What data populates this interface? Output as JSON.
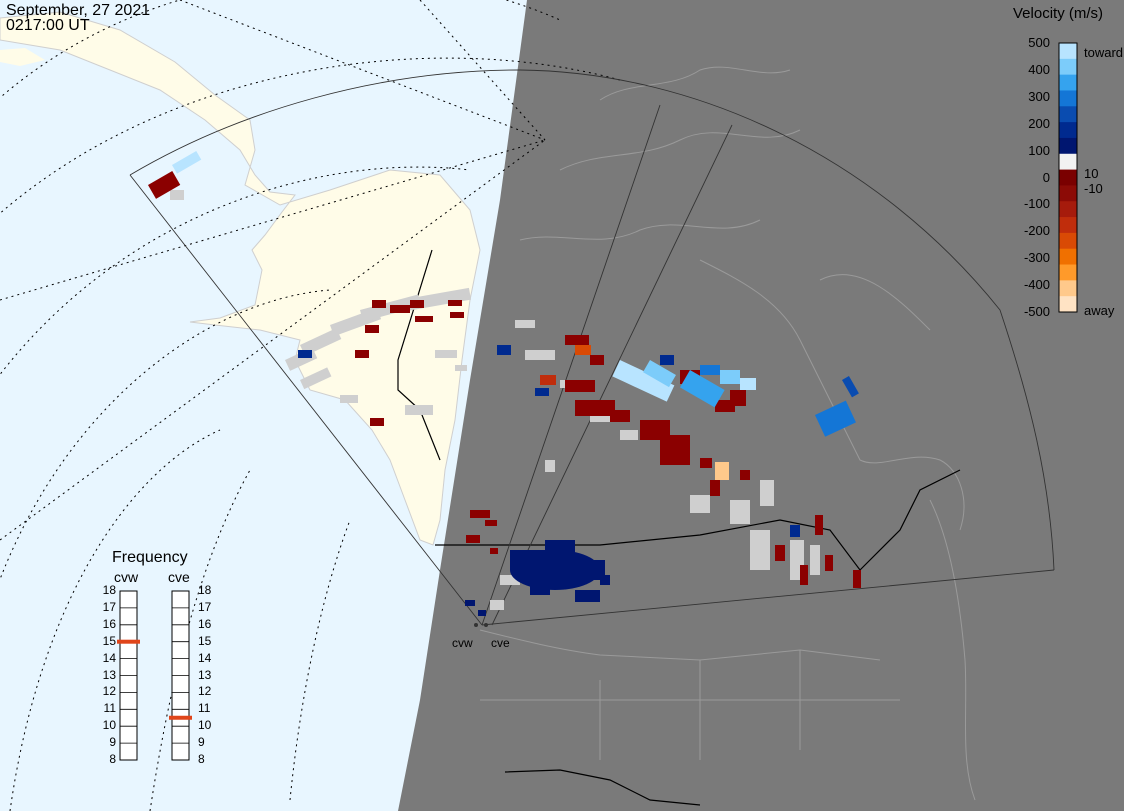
{
  "header": {
    "date": "September, 27 2021",
    "time": "0217:00 UT"
  },
  "colorbar": {
    "title": "Velocity (m/s)",
    "ticks": [
      "500",
      "400",
      "300",
      "200",
      "100",
      "0",
      "-100",
      "-200",
      "-300",
      "-400",
      "-500"
    ],
    "toward_label": "toward",
    "away_label": "away",
    "inner_pos": "10",
    "inner_neg": "-10",
    "colors": [
      "#b8e4ff",
      "#7cccfa",
      "#35a3ee",
      "#1476d6",
      "#0a4cb0",
      "#002a8f",
      "#001670",
      "#f2f2f2",
      "#7a0000",
      "#8c0b06",
      "#a61b0c",
      "#c02d0c",
      "#d94a05",
      "#f07000",
      "#ff9a2a",
      "#ffc98b",
      "#ffe3c4"
    ]
  },
  "frequency": {
    "title": "Frequency",
    "radars": [
      "cvw",
      "cve"
    ],
    "scale": [
      "18",
      "17",
      "16",
      "15",
      "14",
      "13",
      "12",
      "11",
      "10",
      "9",
      "8"
    ],
    "cvw_mhz": 15,
    "cve_mhz": 10.5,
    "marker_color": "#e0451a"
  },
  "radar_sites": [
    "cvw",
    "cve"
  ],
  "map_colors": {
    "ocean_day": "#e8f6ff",
    "land_day": "#fffce8",
    "night": "#7a7a7a",
    "ground_scatter": "#cfcfcf"
  }
}
